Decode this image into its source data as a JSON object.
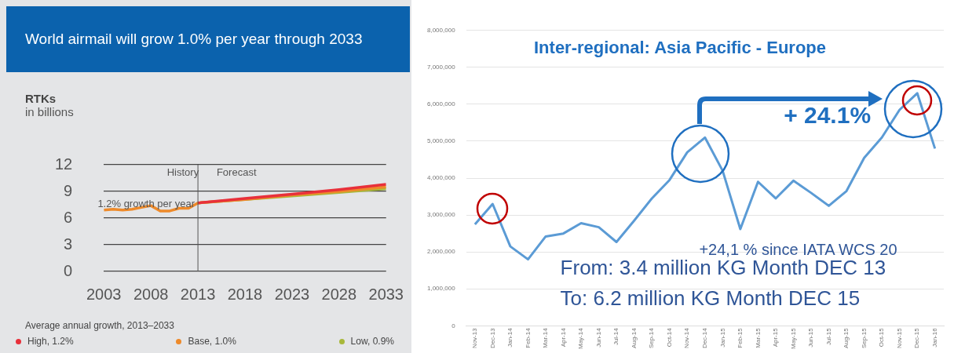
{
  "chart_data": [
    {
      "type": "line",
      "title": "World airmail will grow 1.0% per year through 2033",
      "ylabel": "RTKs",
      "subtitle": "in billions",
      "legend_title": "Average annual growth, 2013–2033",
      "xlim": [
        2003,
        2033
      ],
      "xticks": [
        2003,
        2008,
        2013,
        2018,
        2023,
        2028,
        2033
      ],
      "ylim": [
        0,
        12
      ],
      "yticks": [
        0,
        3,
        6,
        9,
        12
      ],
      "grid": "y",
      "legend": "bottom",
      "series": [
        {
          "name": "High, 1.2%",
          "color": "#e8303a",
          "x": [
            2013,
            2018,
            2023,
            2028,
            2033
          ],
          "values": [
            7.7,
            8.2,
            8.7,
            9.2,
            9.8
          ]
        },
        {
          "name": "Base, 1.0%",
          "color": "#ee8a2a",
          "x": [
            2003,
            2004,
            2005,
            2006,
            2007,
            2008,
            2009,
            2010,
            2011,
            2012,
            2013,
            2018,
            2023,
            2028,
            2033
          ],
          "values": [
            6.9,
            7.0,
            6.9,
            7.0,
            7.2,
            7.4,
            6.8,
            6.8,
            7.1,
            7.1,
            7.7,
            8.1,
            8.6,
            9.0,
            9.5
          ]
        },
        {
          "name": "Low, 0.9%",
          "color": "#a8b83a",
          "x": [
            2013,
            2018,
            2023,
            2028,
            2033
          ],
          "values": [
            7.7,
            8.1,
            8.5,
            8.9,
            9.3
          ]
        }
      ],
      "ref_lines": [
        {
          "axis": "x",
          "value": 2013,
          "color": "#555555"
        }
      ],
      "annotations": [
        "History",
        "Forecast",
        "1.2% growth per year"
      ]
    },
    {
      "type": "line",
      "title": "Inter-regional: Asia Pacific - Europe",
      "categories": [
        "Nov-13",
        "Dec-13",
        "Jan-14",
        "Feb-14",
        "Mar-14",
        "Apr-14",
        "May-14",
        "Jun-14",
        "Jul-14",
        "Aug-14",
        "Sep-14",
        "Oct-14",
        "Nov-14",
        "Dec-14",
        "Jan-15",
        "Feb-15",
        "Mar-15",
        "Apr-15",
        "May-15",
        "Jun-15",
        "Jul-15",
        "Aug-15",
        "Sep-15",
        "Oct-15",
        "Nov-15",
        "Dec-15",
        "Jan-16"
      ],
      "ylim": [
        0,
        8000000
      ],
      "yticks": [
        {
          "value": 0,
          "label": "0"
        },
        {
          "value": 1000000,
          "label": "1,000,000"
        },
        {
          "value": 2000000,
          "label": "2,000,000"
        },
        {
          "value": 3000000,
          "label": "3,000,000"
        },
        {
          "value": 4000000,
          "label": "4,000,000"
        },
        {
          "value": 5000000,
          "label": "5,000,000"
        },
        {
          "value": 6000000,
          "label": "6,000,000"
        },
        {
          "value": 7000000,
          "label": "7,000,000"
        },
        {
          "value": 8000000,
          "label": "8,000,000"
        }
      ],
      "grid": "y",
      "series": [
        {
          "color": "#5b9bd5",
          "values": [
            2750000,
            3300000,
            2150000,
            1800000,
            2420000,
            2500000,
            2780000,
            2670000,
            2270000,
            2850000,
            3450000,
            3950000,
            4700000,
            5100000,
            4200000,
            2620000,
            3900000,
            3450000,
            3930000,
            3600000,
            3250000,
            3650000,
            4550000,
            5100000,
            5850000,
            6300000,
            4800000
          ]
        }
      ],
      "annotations": [
        "+ 24.1%",
        "+24,1 % since IATA WCS 20",
        "From: 3.4 million KG Month DEC 13",
        "To: 6.2 million KG Month DEC 15"
      ]
    }
  ]
}
